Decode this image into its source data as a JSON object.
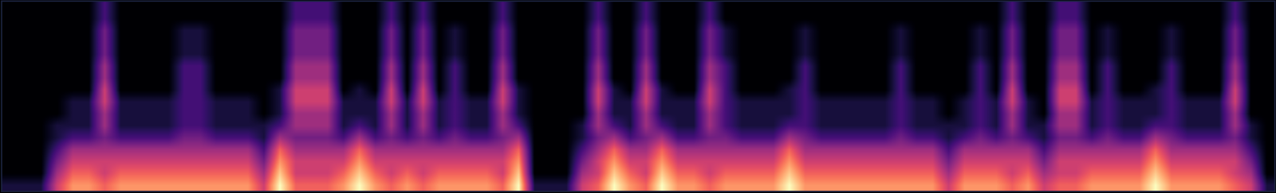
{
  "chart_data": {
    "type": "heatmap",
    "color": "magma",
    "tick_labels": false,
    "cells": [
      [
        0,
        0,
        0,
        0,
        0,
        0,
        2,
        0,
        0,
        0,
        0,
        0,
        0,
        0,
        0,
        0,
        0,
        0,
        2,
        2,
        2,
        0,
        0,
        0,
        2,
        0,
        2,
        0,
        0,
        0,
        0,
        2,
        0,
        0,
        0,
        0,
        0,
        2,
        0,
        0,
        2,
        0,
        0,
        0,
        2,
        0,
        0,
        0,
        0,
        0,
        0,
        0,
        0,
        0,
        0,
        0,
        0,
        0,
        0,
        0,
        0,
        0,
        0,
        2,
        0,
        0,
        2,
        2,
        0,
        0,
        0,
        0,
        0,
        0,
        0,
        0,
        0,
        2,
        0,
        0
      ],
      [
        0,
        0,
        0,
        0,
        0,
        0,
        2,
        0,
        0,
        0,
        0,
        0,
        0,
        0,
        0,
        0,
        0,
        0,
        2,
        2,
        2,
        0,
        0,
        0,
        2,
        0,
        2,
        0,
        0,
        0,
        0,
        2,
        0,
        0,
        0,
        0,
        0,
        2,
        0,
        0,
        2,
        0,
        0,
        0,
        2,
        0,
        0,
        0,
        0,
        0,
        0,
        0,
        0,
        0,
        0,
        0,
        0,
        0,
        0,
        0,
        0,
        0,
        0,
        2,
        0,
        0,
        2,
        2,
        0,
        0,
        0,
        0,
        0,
        0,
        0,
        0,
        0,
        2,
        0,
        0
      ],
      [
        0,
        0,
        0,
        0,
        0,
        0,
        3,
        0,
        0,
        0,
        0,
        1,
        1,
        0,
        0,
        0,
        0,
        0,
        3,
        3,
        3,
        0,
        0,
        0,
        3,
        0,
        3,
        0,
        1,
        0,
        0,
        3,
        0,
        0,
        0,
        0,
        0,
        3,
        0,
        0,
        3,
        0,
        0,
        0,
        3,
        1,
        0,
        0,
        0,
        0,
        1,
        0,
        0,
        0,
        0,
        0,
        1,
        0,
        0,
        0,
        0,
        1,
        0,
        3,
        0,
        0,
        3,
        3,
        0,
        1,
        0,
        0,
        0,
        1,
        0,
        0,
        0,
        3,
        0,
        0
      ],
      [
        0,
        0,
        0,
        0,
        0,
        0,
        3,
        0,
        0,
        0,
        0,
        1,
        1,
        0,
        0,
        0,
        0,
        0,
        3,
        3,
        3,
        0,
        0,
        0,
        3,
        0,
        3,
        0,
        1,
        0,
        0,
        3,
        0,
        0,
        0,
        0,
        0,
        3,
        0,
        0,
        3,
        0,
        0,
        0,
        3,
        1,
        0,
        0,
        0,
        0,
        1,
        0,
        0,
        0,
        0,
        0,
        1,
        0,
        0,
        0,
        0,
        1,
        0,
        3,
        0,
        0,
        3,
        3,
        0,
        1,
        0,
        0,
        0,
        1,
        0,
        0,
        0,
        3,
        0,
        0
      ],
      [
        0,
        0,
        0,
        0,
        0,
        0,
        3,
        0,
        0,
        0,
        0,
        1,
        1,
        0,
        0,
        0,
        0,
        0,
        3,
        3,
        3,
        0,
        0,
        0,
        3,
        0,
        3,
        0,
        1,
        0,
        0,
        3,
        0,
        0,
        0,
        0,
        0,
        3,
        0,
        0,
        3,
        0,
        0,
        0,
        3,
        1,
        0,
        0,
        0,
        0,
        1,
        0,
        0,
        0,
        0,
        0,
        1,
        0,
        0,
        0,
        0,
        1,
        0,
        3,
        0,
        0,
        3,
        3,
        0,
        1,
        0,
        0,
        0,
        1,
        0,
        0,
        0,
        3,
        0,
        0
      ],
      [
        0,
        0,
        0,
        0,
        0,
        0,
        4,
        0,
        0,
        0,
        0,
        2,
        2,
        0,
        0,
        0,
        0,
        0,
        4,
        4,
        4,
        0,
        0,
        0,
        4,
        0,
        4,
        0,
        2,
        0,
        0,
        4,
        0,
        0,
        0,
        0,
        0,
        4,
        0,
        0,
        4,
        0,
        0,
        0,
        4,
        2,
        0,
        0,
        0,
        0,
        2,
        0,
        0,
        0,
        0,
        0,
        2,
        0,
        0,
        0,
        0,
        2,
        0,
        4,
        0,
        0,
        4,
        4,
        0,
        2,
        0,
        0,
        0,
        2,
        0,
        0,
        0,
        4,
        0,
        0
      ],
      [
        0,
        0,
        0,
        0,
        0,
        0,
        4,
        0,
        0,
        0,
        0,
        2,
        2,
        0,
        0,
        0,
        0,
        0,
        4,
        4,
        4,
        0,
        0,
        0,
        4,
        0,
        4,
        0,
        2,
        0,
        0,
        4,
        0,
        0,
        0,
        0,
        0,
        4,
        0,
        0,
        4,
        0,
        0,
        0,
        4,
        2,
        0,
        0,
        0,
        0,
        2,
        0,
        0,
        0,
        0,
        0,
        2,
        0,
        0,
        0,
        0,
        2,
        0,
        4,
        0,
        0,
        4,
        4,
        0,
        2,
        0,
        0,
        0,
        2,
        0,
        0,
        0,
        4,
        0,
        0
      ],
      [
        0,
        0,
        0,
        0,
        0,
        0,
        5,
        0,
        0,
        0,
        0,
        2,
        2,
        0,
        0,
        0,
        0,
        1,
        5,
        5,
        5,
        0,
        1,
        0,
        5,
        0,
        5,
        0,
        2,
        0,
        0,
        5,
        1,
        0,
        0,
        0,
        0,
        5,
        1,
        0,
        5,
        1,
        0,
        0,
        5,
        2,
        0,
        0,
        0,
        1,
        2,
        0,
        0,
        0,
        0,
        0,
        2,
        0,
        0,
        0,
        0,
        2,
        0,
        5,
        0,
        0,
        5,
        5,
        0,
        2,
        0,
        0,
        1,
        2,
        0,
        0,
        0,
        5,
        0,
        0
      ],
      [
        0,
        0,
        0,
        0,
        1,
        1,
        5,
        1,
        1,
        1,
        1,
        2,
        2,
        1,
        1,
        1,
        0,
        1,
        5,
        5,
        5,
        1,
        1,
        1,
        5,
        1,
        5,
        1,
        2,
        1,
        1,
        5,
        1,
        0,
        0,
        0,
        0,
        5,
        1,
        1,
        5,
        1,
        1,
        1,
        5,
        2,
        1,
        1,
        1,
        1,
        2,
        1,
        1,
        1,
        1,
        1,
        2,
        1,
        1,
        0,
        1,
        2,
        1,
        5,
        1,
        0,
        5,
        5,
        1,
        2,
        1,
        1,
        1,
        2,
        1,
        1,
        1,
        5,
        0,
        0
      ],
      [
        0,
        0,
        0,
        0,
        1,
        1,
        4,
        1,
        1,
        1,
        1,
        2,
        2,
        1,
        1,
        1,
        0,
        1,
        4,
        4,
        4,
        1,
        1,
        1,
        4,
        1,
        4,
        1,
        2,
        1,
        1,
        4,
        1,
        0,
        0,
        0,
        0,
        4,
        1,
        1,
        4,
        1,
        1,
        1,
        4,
        2,
        1,
        1,
        1,
        1,
        2,
        1,
        1,
        1,
        1,
        1,
        2,
        1,
        1,
        0,
        1,
        2,
        1,
        4,
        1,
        0,
        4,
        4,
        1,
        2,
        1,
        1,
        1,
        2,
        1,
        1,
        1,
        4,
        0,
        0
      ],
      [
        0,
        0,
        0,
        1,
        1,
        1,
        4,
        1,
        1,
        1,
        1,
        2,
        2,
        1,
        1,
        1,
        1,
        2,
        4,
        4,
        4,
        1,
        2,
        1,
        4,
        1,
        4,
        1,
        2,
        1,
        1,
        4,
        2,
        0,
        0,
        0,
        1,
        4,
        2,
        1,
        4,
        2,
        1,
        1,
        4,
        2,
        1,
        1,
        1,
        2,
        2,
        1,
        1,
        1,
        1,
        1,
        2,
        1,
        1,
        1,
        1,
        2,
        1,
        4,
        1,
        1,
        4,
        4,
        1,
        2,
        1,
        1,
        2,
        2,
        1,
        1,
        1,
        4,
        1,
        0
      ],
      [
        0,
        0,
        0,
        1,
        2,
        2,
        3,
        2,
        2,
        2,
        2,
        3,
        3,
        2,
        2,
        2,
        1,
        4,
        3,
        3,
        3,
        2,
        4,
        2,
        3,
        2,
        3,
        2,
        3,
        2,
        2,
        3,
        4,
        0,
        0,
        0,
        1,
        3,
        4,
        2,
        3,
        4,
        2,
        2,
        3,
        3,
        2,
        2,
        2,
        4,
        3,
        2,
        2,
        2,
        2,
        2,
        3,
        2,
        2,
        1,
        2,
        3,
        2,
        3,
        2,
        1,
        3,
        3,
        2,
        3,
        2,
        2,
        4,
        3,
        2,
        2,
        2,
        3,
        1,
        0
      ],
      [
        0,
        0,
        0,
        2,
        4,
        4,
        4,
        4,
        4,
        4,
        4,
        4,
        4,
        4,
        4,
        4,
        2,
        6,
        4,
        4,
        4,
        4,
        6,
        4,
        4,
        4,
        4,
        4,
        4,
        4,
        4,
        4,
        6,
        0,
        0,
        0,
        2,
        4,
        6,
        4,
        4,
        6,
        4,
        4,
        4,
        4,
        4,
        4,
        4,
        6,
        4,
        4,
        4,
        4,
        4,
        4,
        4,
        4,
        4,
        2,
        4,
        4,
        4,
        4,
        4,
        2,
        4,
        4,
        4,
        4,
        4,
        4,
        6,
        4,
        4,
        4,
        4,
        4,
        2,
        0
      ],
      [
        0,
        0,
        0,
        3,
        5,
        5,
        5,
        5,
        5,
        5,
        5,
        5,
        5,
        5,
        5,
        5,
        3,
        7,
        5,
        5,
        5,
        5,
        7,
        5,
        5,
        5,
        5,
        5,
        5,
        5,
        5,
        5,
        7,
        0,
        0,
        0,
        3,
        5,
        7,
        5,
        5,
        7,
        5,
        5,
        5,
        5,
        5,
        5,
        5,
        7,
        5,
        5,
        5,
        5,
        5,
        5,
        5,
        5,
        5,
        3,
        5,
        5,
        5,
        5,
        5,
        3,
        5,
        5,
        5,
        5,
        5,
        5,
        7,
        5,
        5,
        5,
        5,
        5,
        3,
        0
      ],
      [
        0,
        0,
        0,
        4,
        6,
        6,
        5,
        6,
        6,
        6,
        6,
        6,
        6,
        6,
        6,
        6,
        4,
        8,
        5,
        5,
        5,
        6,
        8,
        6,
        5,
        6,
        5,
        6,
        6,
        6,
        6,
        5,
        8,
        0,
        0,
        0,
        4,
        5,
        8,
        6,
        5,
        8,
        6,
        6,
        5,
        6,
        6,
        6,
        6,
        8,
        6,
        6,
        6,
        6,
        6,
        6,
        6,
        6,
        6,
        4,
        6,
        6,
        6,
        5,
        6,
        4,
        5,
        5,
        6,
        6,
        6,
        6,
        8,
        6,
        6,
        6,
        6,
        5,
        4,
        0
      ],
      [
        1,
        1,
        1,
        5,
        7,
        7,
        6,
        7,
        7,
        7,
        7,
        7,
        7,
        7,
        7,
        7,
        5,
        9,
        6,
        6,
        6,
        7,
        9,
        7,
        6,
        7,
        6,
        7,
        7,
        7,
        7,
        6,
        9,
        1,
        1,
        1,
        5,
        6,
        9,
        7,
        6,
        9,
        7,
        7,
        6,
        7,
        7,
        7,
        7,
        9,
        7,
        7,
        7,
        7,
        7,
        7,
        7,
        7,
        7,
        5,
        7,
        7,
        7,
        6,
        7,
        5,
        6,
        6,
        7,
        7,
        7,
        7,
        9,
        7,
        7,
        7,
        7,
        6,
        5,
        1
      ]
    ]
  }
}
